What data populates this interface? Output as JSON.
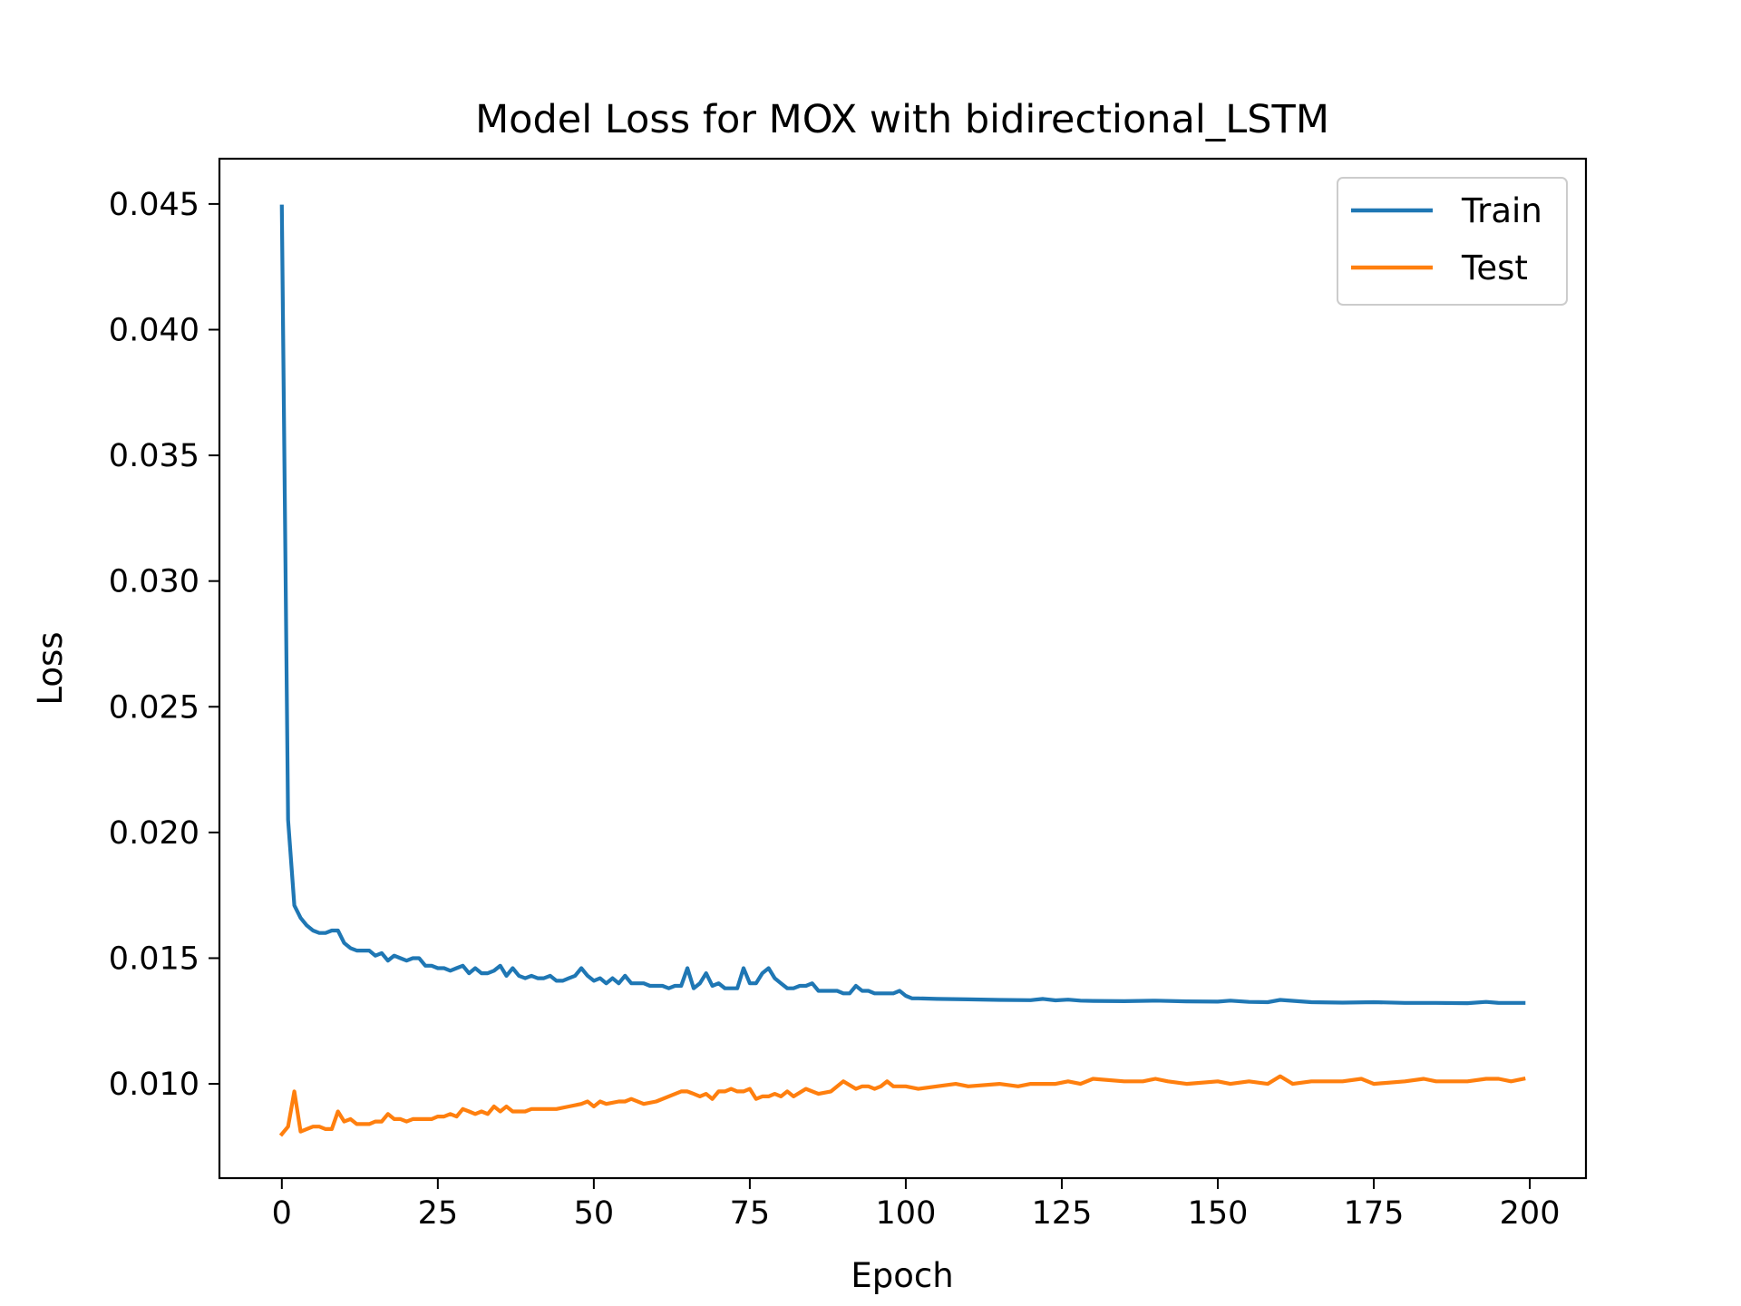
{
  "chart_data": {
    "type": "line",
    "title": "Model Loss for MOX with bidirectional_LSTM",
    "xlabel": "Epoch",
    "ylabel": "Loss",
    "xlim": [
      -10,
      209
    ],
    "ylim": [
      0.00625,
      0.0468
    ],
    "xticks": [
      0,
      25,
      50,
      75,
      100,
      125,
      150,
      175,
      200
    ],
    "yticks": [
      0.01,
      0.015,
      0.02,
      0.025,
      0.03,
      0.035,
      0.04,
      0.045
    ],
    "ytick_labels": [
      "0.010",
      "0.015",
      "0.020",
      "0.025",
      "0.030",
      "0.035",
      "0.040",
      "0.045"
    ],
    "grid": false,
    "legend_position": "top-right",
    "series": [
      {
        "name": "Train",
        "color": "#1f77b4",
        "x": [
          0,
          1,
          2,
          3,
          4,
          5,
          6,
          7,
          8,
          9,
          10,
          11,
          12,
          13,
          14,
          15,
          16,
          17,
          18,
          19,
          20,
          21,
          22,
          23,
          24,
          25,
          26,
          27,
          28,
          29,
          30,
          31,
          32,
          33,
          34,
          35,
          36,
          37,
          38,
          39,
          40,
          41,
          42,
          43,
          44,
          45,
          46,
          47,
          48,
          49,
          50,
          51,
          52,
          53,
          54,
          55,
          56,
          57,
          58,
          59,
          60,
          61,
          62,
          63,
          64,
          65,
          66,
          67,
          68,
          69,
          70,
          71,
          72,
          73,
          74,
          75,
          76,
          77,
          78,
          79,
          80,
          81,
          82,
          83,
          84,
          85,
          86,
          87,
          88,
          89,
          90,
          91,
          92,
          93,
          94,
          95,
          96,
          97,
          98,
          99,
          100,
          101,
          102,
          105,
          110,
          115,
          120,
          122,
          124,
          126,
          128,
          130,
          135,
          140,
          145,
          150,
          152,
          155,
          158,
          160,
          165,
          170,
          175,
          180,
          185,
          190,
          193,
          195,
          199
        ],
        "y": [
          0.0449,
          0.0205,
          0.0171,
          0.0166,
          0.0163,
          0.0161,
          0.016,
          0.016,
          0.0161,
          0.0161,
          0.0156,
          0.0154,
          0.0153,
          0.0153,
          0.0153,
          0.0151,
          0.0152,
          0.0149,
          0.0151,
          0.015,
          0.0149,
          0.015,
          0.015,
          0.0147,
          0.0147,
          0.0146,
          0.0146,
          0.0145,
          0.0146,
          0.0147,
          0.0144,
          0.0146,
          0.0144,
          0.0144,
          0.0145,
          0.0147,
          0.0143,
          0.0146,
          0.0143,
          0.0142,
          0.0143,
          0.0142,
          0.0142,
          0.0143,
          0.0141,
          0.0141,
          0.0142,
          0.0143,
          0.0146,
          0.0143,
          0.0141,
          0.0142,
          0.014,
          0.0142,
          0.014,
          0.0143,
          0.014,
          0.014,
          0.014,
          0.0139,
          0.0139,
          0.0139,
          0.0138,
          0.0139,
          0.0139,
          0.0146,
          0.0138,
          0.014,
          0.0144,
          0.0139,
          0.014,
          0.0138,
          0.0138,
          0.0138,
          0.0146,
          0.014,
          0.014,
          0.0144,
          0.0146,
          0.0142,
          0.014,
          0.0138,
          0.0138,
          0.0139,
          0.0139,
          0.014,
          0.0137,
          0.0137,
          0.0137,
          0.0137,
          0.0136,
          0.0136,
          0.0139,
          0.0137,
          0.0137,
          0.0136,
          0.0136,
          0.0136,
          0.0136,
          0.0137,
          0.0135,
          0.0134,
          0.0134,
          0.01338,
          0.01336,
          0.01334,
          0.01333,
          0.01338,
          0.01332,
          0.01335,
          0.01331,
          0.0133,
          0.01329,
          0.01331,
          0.01328,
          0.01327,
          0.01331,
          0.01326,
          0.01325,
          0.01334,
          0.01325,
          0.01323,
          0.01325,
          0.01322,
          0.01322,
          0.01321,
          0.01326,
          0.01322,
          0.01322
        ]
      },
      {
        "name": "Test",
        "color": "#ff7f0e",
        "x": [
          0,
          1,
          2,
          3,
          4,
          5,
          6,
          7,
          8,
          9,
          10,
          11,
          12,
          13,
          14,
          15,
          16,
          17,
          18,
          19,
          20,
          21,
          22,
          23,
          24,
          25,
          26,
          27,
          28,
          29,
          30,
          31,
          32,
          33,
          34,
          35,
          36,
          37,
          38,
          39,
          40,
          42,
          44,
          46,
          48,
          49,
          50,
          51,
          52,
          54,
          55,
          56,
          58,
          60,
          62,
          64,
          65,
          66,
          67,
          68,
          69,
          70,
          71,
          72,
          73,
          74,
          75,
          76,
          77,
          78,
          79,
          80,
          81,
          82,
          84,
          86,
          88,
          90,
          92,
          93,
          94,
          95,
          96,
          97,
          98,
          100,
          102,
          105,
          108,
          110,
          115,
          118,
          120,
          122,
          124,
          126,
          128,
          130,
          135,
          138,
          140,
          142,
          145,
          150,
          152,
          155,
          158,
          160,
          162,
          165,
          170,
          173,
          175,
          180,
          183,
          185,
          190,
          193,
          195,
          197,
          199
        ],
        "y": [
          0.008,
          0.0083,
          0.0097,
          0.0081,
          0.0082,
          0.0083,
          0.0083,
          0.0082,
          0.0082,
          0.0089,
          0.0085,
          0.0086,
          0.0084,
          0.0084,
          0.0084,
          0.0085,
          0.0085,
          0.0088,
          0.0086,
          0.0086,
          0.0085,
          0.0086,
          0.0086,
          0.0086,
          0.0086,
          0.0087,
          0.0087,
          0.0088,
          0.0087,
          0.009,
          0.0089,
          0.0088,
          0.0089,
          0.0088,
          0.0091,
          0.0089,
          0.0091,
          0.0089,
          0.0089,
          0.0089,
          0.009,
          0.009,
          0.009,
          0.0091,
          0.0092,
          0.0093,
          0.0091,
          0.0093,
          0.0092,
          0.0093,
          0.0093,
          0.0094,
          0.0092,
          0.0093,
          0.0095,
          0.0097,
          0.0097,
          0.0096,
          0.0095,
          0.0096,
          0.0094,
          0.0097,
          0.0097,
          0.0098,
          0.0097,
          0.0097,
          0.0098,
          0.0094,
          0.0095,
          0.0095,
          0.0096,
          0.0095,
          0.0097,
          0.0095,
          0.0098,
          0.0096,
          0.0097,
          0.0101,
          0.0098,
          0.0099,
          0.0099,
          0.0098,
          0.0099,
          0.0101,
          0.0099,
          0.0099,
          0.0098,
          0.0099,
          0.01,
          0.0099,
          0.01,
          0.0099,
          0.01,
          0.01,
          0.01,
          0.0101,
          0.01,
          0.0102,
          0.0101,
          0.0101,
          0.0102,
          0.0101,
          0.01,
          0.0101,
          0.01,
          0.0101,
          0.01,
          0.0103,
          0.01,
          0.0101,
          0.0101,
          0.0102,
          0.01,
          0.0101,
          0.0102,
          0.0101,
          0.0101,
          0.0102,
          0.0102,
          0.0101,
          0.0102
        ]
      }
    ]
  }
}
